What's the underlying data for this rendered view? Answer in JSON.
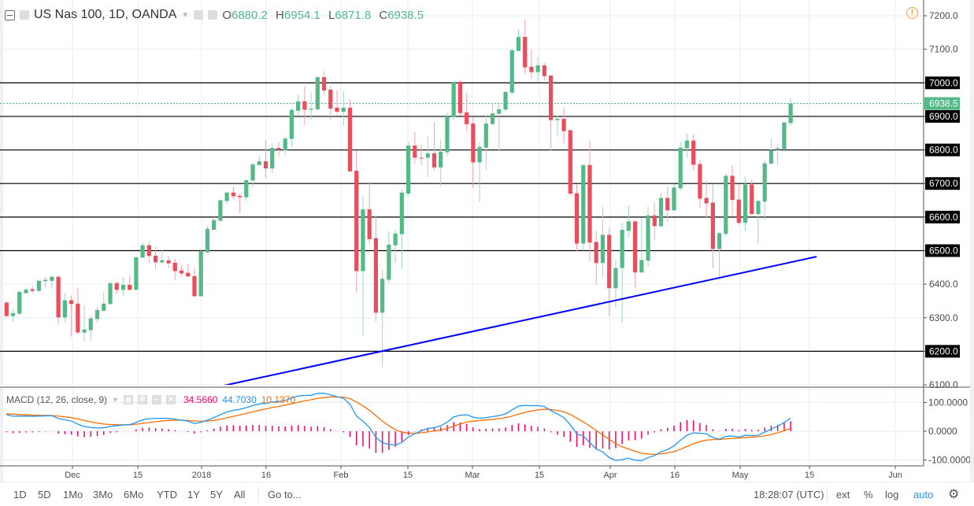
{
  "header": {
    "symbol_title": "US Nas 100, 1D, OANDA",
    "open_label": "O",
    "open": "6880.2",
    "high_label": "H",
    "high": "6954.1",
    "low_label": "L",
    "low": "6871.8",
    "close_label": "C",
    "close": "6938.5"
  },
  "macd_legend": {
    "title": "MACD (12, 26, close, 9)",
    "histogram": "34.5660",
    "macd": "44.7030",
    "signal": "10.1370"
  },
  "colors": {
    "up": "#53b987",
    "down": "#eb4d5c",
    "macd": "#2196f3",
    "signal": "#ff6d00",
    "histogram": "#ff0062",
    "trendline": "#0000ff",
    "grid": "#e6edf3",
    "level_line": "#000000"
  },
  "bottom_toolbar": {
    "ranges": [
      "1D",
      "5D",
      "1Mo",
      "3Mo",
      "6Mo",
      "YTD",
      "1Y",
      "5Y",
      "All"
    ],
    "goto": "Go to...",
    "clock": "18:28:07 (UTC)",
    "ext": "ext",
    "percent": "%",
    "log": "log",
    "auto": "auto",
    "settings_icon": "gear-icon"
  },
  "chart_data": {
    "type": "candlestick",
    "price_axis": {
      "min": 6100,
      "max": 7200,
      "step": 100,
      "ticks": [
        "7200.0",
        "7100.0",
        "7000.0",
        "6900.0",
        "6800.0",
        "6700.0",
        "6600.0",
        "6500.0",
        "6400.0",
        "6300.0",
        "6200.0",
        "6100.0"
      ]
    },
    "horizontal_levels": [
      7000,
      6900,
      6800,
      6700,
      6600,
      6500,
      6200
    ],
    "last_price": "6938.5",
    "trendline": {
      "start_bar": 32.4,
      "start_price": 6093,
      "end_bar": 125,
      "end_price": 6482
    },
    "time_ticks": [
      "Dec",
      "15",
      "2018",
      "16",
      "Feb",
      "15",
      "Mar",
      "15",
      "Apr",
      "16",
      "May",
      "15",
      "Jun"
    ],
    "macd_axis": {
      "ticks": [
        "100.0000",
        "0.0000",
        "-100.0000"
      ]
    },
    "macd_params": {
      "fast": 12,
      "slow": 26,
      "signal": 9
    },
    "ohlc": [
      [
        6345,
        6350,
        6302,
        6305
      ],
      [
        6305,
        6326,
        6289,
        6314
      ],
      [
        6312,
        6382,
        6307,
        6377
      ],
      [
        6373,
        6391,
        6373,
        6384
      ],
      [
        6385,
        6396,
        6373,
        6380
      ],
      [
        6380,
        6412,
        6377,
        6410
      ],
      [
        6409,
        6422,
        6391,
        6413
      ],
      [
        6410,
        6427,
        6387,
        6422
      ],
      [
        6422,
        6427,
        6282,
        6301
      ],
      [
        6301,
        6375,
        6286,
        6352
      ],
      [
        6352,
        6366,
        6244,
        6341
      ],
      [
        6342,
        6389,
        6249,
        6256
      ],
      [
        6256,
        6338,
        6230,
        6265
      ],
      [
        6263,
        6305,
        6230,
        6298
      ],
      [
        6296,
        6333,
        6287,
        6323
      ],
      [
        6321,
        6377,
        6319,
        6342
      ],
      [
        6341,
        6408,
        6338,
        6403
      ],
      [
        6403,
        6408,
        6371,
        6383
      ],
      [
        6383,
        6420,
        6364,
        6398
      ],
      [
        6398,
        6424,
        6383,
        6383
      ],
      [
        6383,
        6484,
        6383,
        6480
      ],
      [
        6479,
        6523,
        6479,
        6516
      ],
      [
        6516,
        6527,
        6462,
        6484
      ],
      [
        6485,
        6511,
        6446,
        6465
      ],
      [
        6465,
        6502,
        6458,
        6471
      ],
      [
        6471,
        6483,
        6448,
        6462
      ],
      [
        6464,
        6474,
        6413,
        6439
      ],
      [
        6441,
        6457,
        6423,
        6432
      ],
      [
        6434,
        6459,
        6423,
        6423
      ],
      [
        6424,
        6448,
        6364,
        6364
      ],
      [
        6364,
        6504,
        6364,
        6498
      ],
      [
        6495,
        6574,
        6492,
        6565
      ],
      [
        6562,
        6600,
        6562,
        6591
      ],
      [
        6589,
        6652,
        6584,
        6650
      ],
      [
        6648,
        6676,
        6638,
        6673
      ],
      [
        6673,
        6691,
        6652,
        6662
      ],
      [
        6663,
        6670,
        6612,
        6659
      ],
      [
        6659,
        6713,
        6648,
        6710
      ],
      [
        6709,
        6762,
        6688,
        6757
      ],
      [
        6755,
        6783,
        6755,
        6766
      ],
      [
        6766,
        6830,
        6716,
        6745
      ],
      [
        6745,
        6821,
        6729,
        6806
      ],
      [
        6806,
        6823,
        6781,
        6800
      ],
      [
        6799,
        6841,
        6788,
        6834
      ],
      [
        6833,
        6926,
        6809,
        6919
      ],
      [
        6917,
        6966,
        6905,
        6945
      ],
      [
        6945,
        6989,
        6875,
        6920
      ],
      [
        6920,
        6973,
        6889,
        6923
      ],
      [
        6921,
        7020,
        6920,
        7017
      ],
      [
        7017,
        7034,
        6966,
        6977
      ],
      [
        6980,
        6991,
        6889,
        6923
      ],
      [
        6926,
        6977,
        6907,
        6914
      ],
      [
        6914,
        6975,
        6873,
        6926
      ],
      [
        6926,
        6949,
        6736,
        6736
      ],
      [
        6738,
        6799,
        6376,
        6439
      ],
      [
        6439,
        6663,
        6247,
        6623
      ],
      [
        6623,
        6705,
        6521,
        6534
      ],
      [
        6537,
        6605,
        6289,
        6315
      ],
      [
        6315,
        6443,
        6153,
        6416
      ],
      [
        6413,
        6558,
        6404,
        6518
      ],
      [
        6516,
        6562,
        6463,
        6551
      ],
      [
        6549,
        6684,
        6446,
        6673
      ],
      [
        6670,
        6823,
        6663,
        6813
      ],
      [
        6813,
        6853,
        6760,
        6777
      ],
      [
        6777,
        6816,
        6755,
        6776
      ],
      [
        6777,
        6841,
        6720,
        6790
      ],
      [
        6790,
        6884,
        6739,
        6748
      ],
      [
        6748,
        6830,
        6692,
        6795
      ],
      [
        6793,
        6912,
        6781,
        6900
      ],
      [
        6898,
        7005,
        6889,
        7003
      ],
      [
        7003,
        7008,
        6901,
        6910
      ],
      [
        6912,
        6970,
        6856,
        6877
      ],
      [
        6879,
        6898,
        6687,
        6763
      ],
      [
        6763,
        6823,
        6645,
        6809
      ],
      [
        6807,
        6905,
        6741,
        6879
      ],
      [
        6877,
        6940,
        6875,
        6909
      ],
      [
        6908,
        6937,
        6798,
        6921
      ],
      [
        6920,
        6977,
        6915,
        6973
      ],
      [
        6971,
        7104,
        6964,
        7097
      ],
      [
        7095,
        7160,
        7095,
        7137
      ],
      [
        7137,
        7188,
        7027,
        7046
      ],
      [
        7048,
        7099,
        7013,
        7032
      ],
      [
        7032,
        7076,
        7004,
        7052
      ],
      [
        7052,
        7059,
        7009,
        7020
      ],
      [
        7022,
        7022,
        6798,
        6889
      ],
      [
        6889,
        6902,
        6840,
        6893
      ],
      [
        6893,
        6926,
        6819,
        6856
      ],
      [
        6859,
        6859,
        6663,
        6670
      ],
      [
        6671,
        6697,
        6497,
        6521
      ],
      [
        6521,
        6755,
        6500,
        6755
      ],
      [
        6755,
        6828,
        6468,
        6524
      ],
      [
        6526,
        6559,
        6398,
        6463
      ],
      [
        6463,
        6631,
        6421,
        6547
      ],
      [
        6547,
        6566,
        6304,
        6388
      ],
      [
        6388,
        6474,
        6330,
        6448
      ],
      [
        6448,
        6584,
        6286,
        6562
      ],
      [
        6559,
        6634,
        6540,
        6587
      ],
      [
        6587,
        6591,
        6388,
        6435
      ],
      [
        6435,
        6598,
        6435,
        6472
      ],
      [
        6470,
        6631,
        6452,
        6605
      ],
      [
        6605,
        6643,
        6531,
        6573
      ],
      [
        6573,
        6673,
        6571,
        6657
      ],
      [
        6657,
        6692,
        6587,
        6620
      ],
      [
        6620,
        6699,
        6620,
        6688
      ],
      [
        6686,
        6826,
        6679,
        6807
      ],
      [
        6805,
        6849,
        6777,
        6828
      ],
      [
        6828,
        6847,
        6738,
        6756
      ],
      [
        6758,
        6770,
        6627,
        6655
      ],
      [
        6657,
        6709,
        6597,
        6641
      ],
      [
        6643,
        6699,
        6447,
        6505
      ],
      [
        6505,
        6556,
        6412,
        6552
      ],
      [
        6550,
        6730,
        6541,
        6723
      ],
      [
        6723,
        6753,
        6604,
        6651
      ],
      [
        6652,
        6699,
        6576,
        6583
      ],
      [
        6583,
        6720,
        6559,
        6697
      ],
      [
        6697,
        6711,
        6606,
        6609
      ],
      [
        6609,
        6651,
        6520,
        6648
      ],
      [
        6646,
        6770,
        6592,
        6760
      ],
      [
        6759,
        6833,
        6759,
        6800
      ],
      [
        6800,
        6819,
        6754,
        6805
      ],
      [
        6802,
        6884,
        6794,
        6882
      ],
      [
        6880.2,
        6954.1,
        6871.8,
        6938.5
      ]
    ]
  }
}
